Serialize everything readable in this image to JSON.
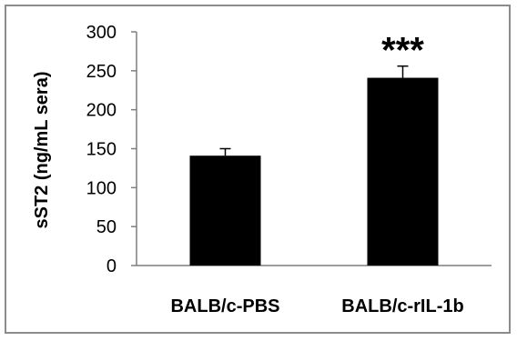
{
  "chart_data": {
    "type": "bar",
    "categories": [
      "BALB/c-PBS",
      "BALB/c-rIL-1b"
    ],
    "values": [
      141,
      241
    ],
    "errors": [
      9,
      15
    ],
    "annotations": [
      "",
      "***"
    ],
    "ylabel": "sST2 (ng/mL sera)",
    "ylim": [
      0,
      300
    ],
    "yticks": [
      0,
      50,
      100,
      150,
      200,
      250,
      300
    ],
    "grid": false,
    "legend": "none",
    "colors": {
      "bar": "#000000",
      "axis": "#7f7f7f",
      "frame": "#8c8c8c"
    }
  }
}
